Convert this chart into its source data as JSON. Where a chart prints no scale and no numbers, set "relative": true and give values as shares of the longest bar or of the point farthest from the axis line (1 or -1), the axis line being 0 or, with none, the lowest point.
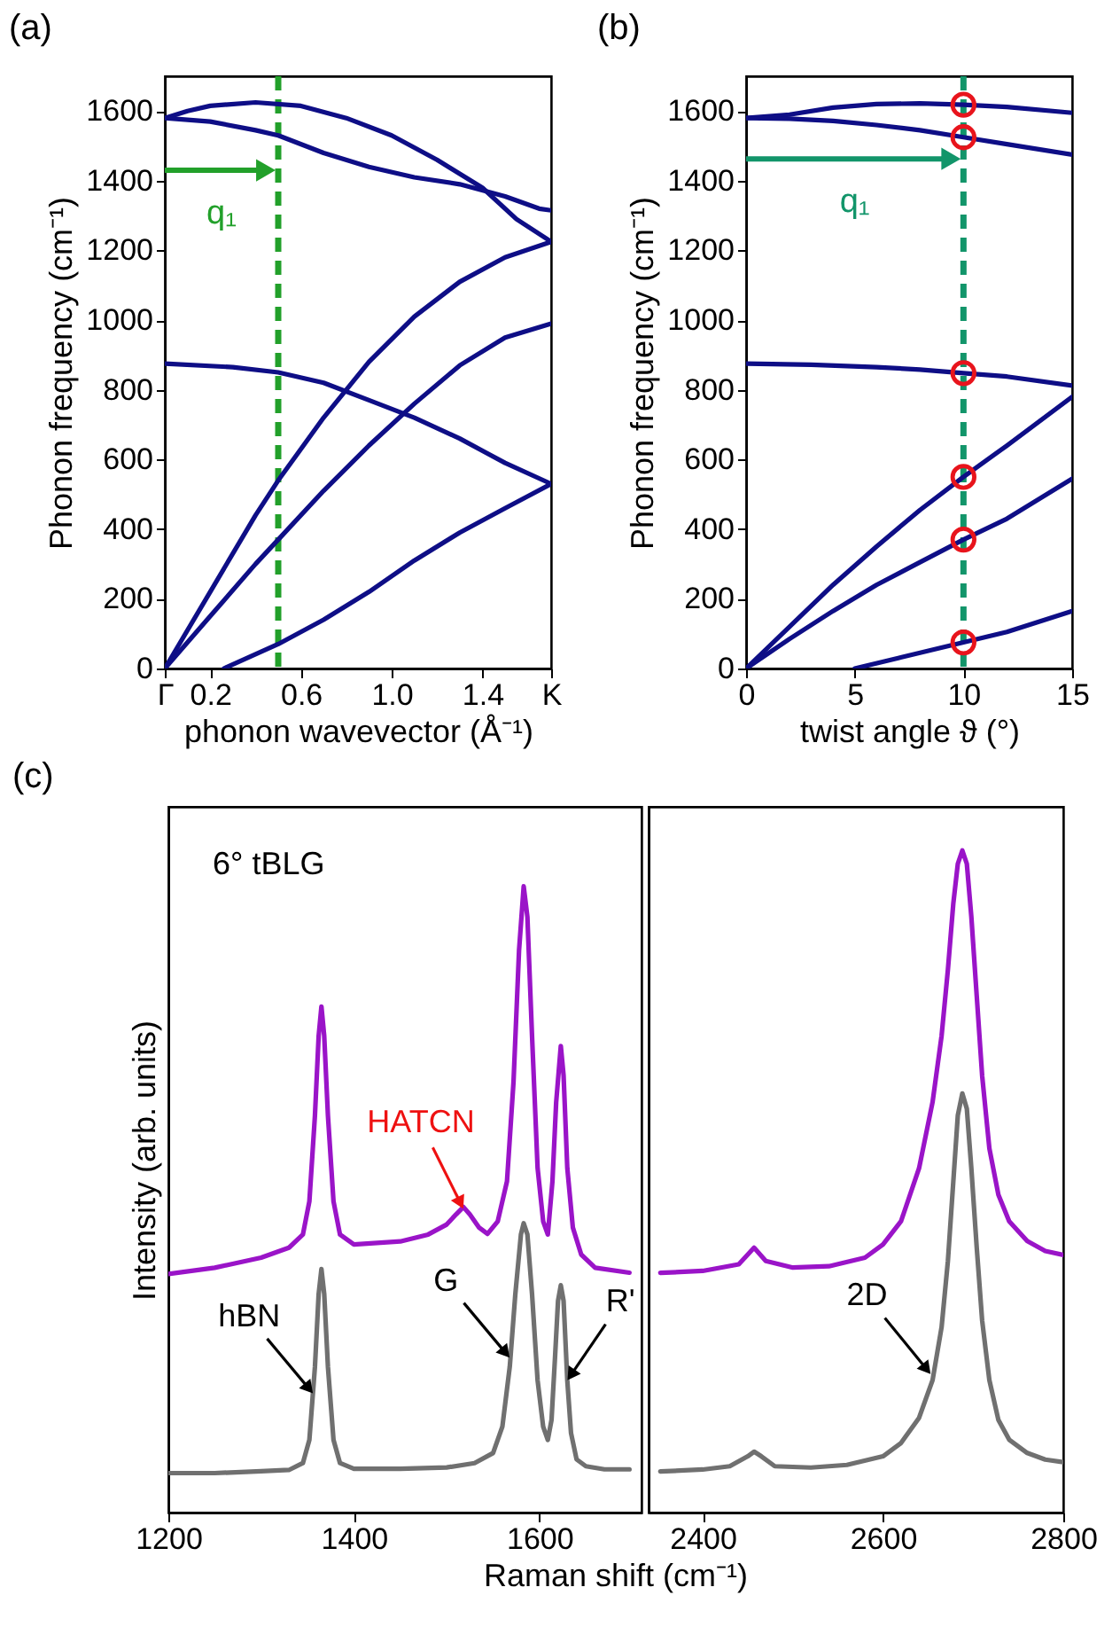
{
  "chart_data": [
    {
      "type": "line",
      "title": "(a)",
      "xlabel": "phonon wavevector (Å⁻¹)",
      "ylabel": "Phonon frequency (cm⁻¹)",
      "xlim": [
        0,
        1.703
      ],
      "ylim": [
        0,
        1700
      ],
      "xticks": [
        {
          "value": 0,
          "label": "Γ"
        },
        0.2,
        0.6,
        {
          "value": 1,
          "label": "1.0"
        },
        1.4,
        {
          "value": 1.703,
          "label": "K"
        }
      ],
      "yticks": [
        0,
        200,
        400,
        600,
        800,
        1000,
        1200,
        1400,
        1600
      ],
      "ref_lines": [
        {
          "axis": "x",
          "value": 0.5,
          "color": "#22a02a",
          "line_style": "dashed"
        }
      ],
      "annotations": [
        {
          "text": "q₁",
          "x": 0.5,
          "y": 1430
        }
      ],
      "series": [
        {
          "color": "#0e0e86",
          "x": [
            0,
            0.1,
            0.2,
            0.4,
            0.6,
            0.8,
            1.0,
            1.2,
            1.4,
            1.55,
            1.703
          ],
          "values": [
            1580,
            1600,
            1615,
            1625,
            1615,
            1580,
            1530,
            1460,
            1380,
            1290,
            1225
          ]
        },
        {
          "color": "#0e0e86",
          "x": [
            0,
            0.2,
            0.4,
            0.5,
            0.7,
            0.9,
            1.1,
            1.3,
            1.5,
            1.65,
            1.703
          ],
          "values": [
            1580,
            1570,
            1545,
            1530,
            1480,
            1440,
            1410,
            1390,
            1355,
            1320,
            1315
          ]
        },
        {
          "color": "#0e0e86",
          "x": [
            0,
            0.3,
            0.5,
            0.7,
            0.9,
            1.1,
            1.3,
            1.5,
            1.703
          ],
          "values": [
            875,
            865,
            850,
            820,
            770,
            720,
            660,
            590,
            530
          ]
        },
        {
          "color": "#0e0e86",
          "x": [
            0,
            0.2,
            0.4,
            0.5,
            0.7,
            0.9,
            1.1,
            1.3,
            1.5,
            1.703
          ],
          "values": [
            0,
            220,
            440,
            540,
            720,
            880,
            1010,
            1110,
            1180,
            1225
          ]
        },
        {
          "color": "#0e0e86",
          "x": [
            0,
            0.2,
            0.4,
            0.5,
            0.7,
            0.9,
            1.1,
            1.3,
            1.5,
            1.703
          ],
          "values": [
            0,
            150,
            300,
            370,
            510,
            640,
            760,
            870,
            950,
            990
          ]
        },
        {
          "color": "#0e0e86",
          "x": [
            0.26,
            0.5,
            0.7,
            0.9,
            1.1,
            1.3,
            1.5,
            1.703
          ],
          "values": [
            0,
            70,
            140,
            220,
            310,
            390,
            460,
            530
          ]
        }
      ]
    },
    {
      "type": "line",
      "title": "(b)",
      "xlabel": "twist angle ϑ (°)",
      "ylabel": "Phonon frequency (cm⁻¹)",
      "xlim": [
        0,
        15
      ],
      "ylim": [
        0,
        1700
      ],
      "xticks": [
        0,
        5,
        10,
        15
      ],
      "yticks": [
        0,
        200,
        400,
        600,
        800,
        1000,
        1200,
        1400,
        1600
      ],
      "ref_lines": [
        {
          "axis": "x",
          "value": 10,
          "color": "#12956a",
          "line_style": "dashed"
        }
      ],
      "annotations": [
        {
          "text": "q₁",
          "x": 10,
          "y": 1463
        }
      ],
      "series": [
        {
          "color": "#0e0e86",
          "x": [
            0,
            2,
            4,
            6,
            8,
            10,
            12,
            15
          ],
          "values": [
            1580,
            1590,
            1610,
            1620,
            1622,
            1618,
            1612,
            1595
          ]
        },
        {
          "color": "#0e0e86",
          "x": [
            0,
            2,
            4,
            6,
            8,
            10,
            12,
            15
          ],
          "values": [
            1580,
            1578,
            1572,
            1560,
            1545,
            1525,
            1505,
            1475
          ]
        },
        {
          "color": "#0e0e86",
          "x": [
            0,
            3,
            6,
            8,
            10,
            12,
            15
          ],
          "values": [
            875,
            872,
            865,
            858,
            848,
            838,
            812
          ]
        },
        {
          "color": "#0e0e86",
          "x": [
            0,
            2,
            4,
            6,
            8,
            10,
            12,
            15
          ],
          "values": [
            0,
            120,
            240,
            350,
            455,
            550,
            640,
            780
          ]
        },
        {
          "color": "#0e0e86",
          "x": [
            0,
            2,
            4,
            6,
            8,
            10,
            12,
            15
          ],
          "values": [
            0,
            85,
            165,
            240,
            305,
            370,
            430,
            545
          ]
        },
        {
          "color": "#0e0e86",
          "x": [
            5,
            7,
            10,
            12,
            15
          ],
          "values": [
            0,
            30,
            75,
            105,
            165
          ]
        },
        {
          "type": "scatter",
          "color": "#e8141c",
          "x": [
            10,
            10,
            10,
            10,
            10,
            10
          ],
          "values": [
            1618,
            1525,
            848,
            550,
            370,
            75
          ]
        }
      ]
    },
    {
      "type": "line",
      "title": "(c)",
      "relative": true,
      "xlabel": "Raman shift (cm⁻¹)",
      "ylabel": "Intensity (arb. units)",
      "xlim": [
        1200,
        1710
      ],
      "xticks": [
        1200,
        1400,
        1600
      ],
      "annotations": [
        "6° tBLG",
        {
          "text": "HATCN",
          "x": 1518,
          "y": 0.485
        },
        {
          "text": "hBN",
          "x": 1356,
          "y": 0.19
        },
        {
          "text": "G",
          "x": 1568,
          "y": 0.247
        },
        {
          "text": "R'",
          "x": 1630,
          "y": 0.211
        }
      ],
      "series": [
        {
          "color": "#9a14c8",
          "x": [
            1200,
            1250,
            1300,
            1330,
            1345,
            1352,
            1358,
            1362,
            1365,
            1368,
            1372,
            1378,
            1385,
            1400,
            1450,
            1480,
            1500,
            1510,
            1518,
            1525,
            1535,
            1544,
            1555,
            1565,
            1572,
            1578,
            1583,
            1587,
            1592,
            1598,
            1604,
            1609,
            1614,
            1618,
            1623,
            1626,
            1630,
            1636,
            1645,
            1660,
            1697
          ],
          "values": [
            0.381,
            0.391,
            0.407,
            0.423,
            0.444,
            0.497,
            0.634,
            0.761,
            0.808,
            0.761,
            0.634,
            0.497,
            0.444,
            0.428,
            0.433,
            0.444,
            0.46,
            0.476,
            0.488,
            0.476,
            0.455,
            0.445,
            0.465,
            0.529,
            0.687,
            0.898,
            1,
            0.951,
            0.761,
            0.55,
            0.465,
            0.444,
            0.529,
            0.655,
            0.745,
            0.698,
            0.55,
            0.455,
            0.412,
            0.391,
            0.383
          ]
        },
        {
          "color": "#707070",
          "x": [
            1200,
            1250,
            1300,
            1330,
            1345,
            1352,
            1358,
            1362,
            1365,
            1368,
            1372,
            1378,
            1385,
            1400,
            1450,
            1500,
            1530,
            1550,
            1560,
            1568,
            1574,
            1580,
            1583,
            1587,
            1592,
            1598,
            1604,
            1609,
            1613,
            1617,
            1620,
            1623,
            1626,
            1630,
            1634,
            1640,
            1650,
            1670,
            1697
          ],
          "values": [
            0.063,
            0.063,
            0.066,
            0.068,
            0.079,
            0.116,
            0.233,
            0.349,
            0.389,
            0.349,
            0.233,
            0.116,
            0.079,
            0.07,
            0.07,
            0.072,
            0.079,
            0.095,
            0.137,
            0.233,
            0.349,
            0.444,
            0.462,
            0.444,
            0.349,
            0.211,
            0.137,
            0.116,
            0.148,
            0.254,
            0.338,
            0.363,
            0.338,
            0.211,
            0.127,
            0.085,
            0.074,
            0.069,
            0.069
          ]
        }
      ]
    },
    {
      "type": "line",
      "relative": true,
      "xlim": [
        2340,
        2800
      ],
      "xticks": [
        2400,
        2600,
        2800
      ],
      "annotations": [
        {
          "text": "2D",
          "x": 2653,
          "y": 0.209
        }
      ],
      "series": [
        {
          "color": "#9a14c8",
          "x": [
            2353,
            2400,
            2440,
            2457,
            2470,
            2500,
            2540,
            2580,
            2600,
            2620,
            2640,
            2655,
            2665,
            2672,
            2678,
            2683,
            2688,
            2693,
            2698,
            2704,
            2710,
            2718,
            2728,
            2740,
            2760,
            2780,
            2800
          ],
          "values": [
            0.362,
            0.365,
            0.375,
            0.4,
            0.38,
            0.37,
            0.372,
            0.385,
            0.405,
            0.44,
            0.52,
            0.62,
            0.72,
            0.82,
            0.92,
            0.98,
            1,
            0.98,
            0.9,
            0.78,
            0.66,
            0.55,
            0.48,
            0.44,
            0.41,
            0.395,
            0.389
          ]
        },
        {
          "color": "#707070",
          "x": [
            2353,
            2400,
            2430,
            2450,
            2457,
            2465,
            2480,
            2520,
            2560,
            2600,
            2620,
            2640,
            2655,
            2665,
            2672,
            2678,
            2683,
            2688,
            2693,
            2698,
            2704,
            2710,
            2718,
            2728,
            2740,
            2760,
            2780,
            2800
          ],
          "values": [
            0.062,
            0.065,
            0.07,
            0.085,
            0.092,
            0.085,
            0.07,
            0.068,
            0.072,
            0.085,
            0.105,
            0.143,
            0.2,
            0.28,
            0.38,
            0.5,
            0.6,
            0.633,
            0.61,
            0.52,
            0.4,
            0.29,
            0.2,
            0.14,
            0.11,
            0.09,
            0.08,
            0.076
          ]
        }
      ]
    }
  ]
}
